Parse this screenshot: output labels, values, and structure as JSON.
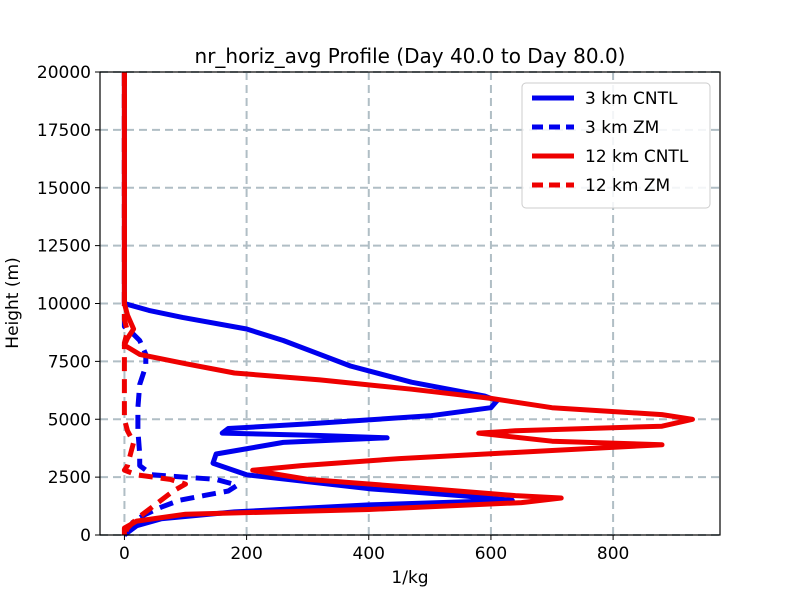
{
  "chart_data": {
    "type": "line",
    "title": "nr_horiz_avg Profile (Day 40.0 to Day 80.0)",
    "xlabel": "1/kg",
    "ylabel": "Height (m)",
    "xlim": [
      -40,
      975
    ],
    "ylim": [
      0,
      20000
    ],
    "xticks": [
      0,
      200,
      400,
      600,
      800
    ],
    "yticks": [
      0,
      2500,
      5000,
      7500,
      10000,
      12500,
      15000,
      17500,
      20000
    ],
    "grid": true,
    "legend_position": "top-right",
    "series": [
      {
        "name": "3 km CNTL",
        "color": "#0000ee",
        "dash": "solid",
        "points": [
          [
            0,
            20000
          ],
          [
            0,
            10000
          ],
          [
            40,
            9700
          ],
          [
            95,
            9400
          ],
          [
            200,
            8900
          ],
          [
            260,
            8400
          ],
          [
            310,
            7900
          ],
          [
            370,
            7300
          ],
          [
            470,
            6600
          ],
          [
            590,
            6000
          ],
          [
            610,
            5800
          ],
          [
            600,
            5500
          ],
          [
            500,
            5150
          ],
          [
            300,
            4800
          ],
          [
            170,
            4600
          ],
          [
            160,
            4400
          ],
          [
            320,
            4300
          ],
          [
            430,
            4200
          ],
          [
            260,
            4000
          ],
          [
            150,
            3500
          ],
          [
            145,
            3100
          ],
          [
            200,
            2600
          ],
          [
            400,
            2000
          ],
          [
            550,
            1700
          ],
          [
            635,
            1500
          ],
          [
            400,
            1300
          ],
          [
            180,
            1000
          ],
          [
            60,
            700
          ],
          [
            20,
            400
          ],
          [
            0,
            0
          ]
        ]
      },
      {
        "name": "3 km ZM",
        "color": "#0000ee",
        "dash": "dashed",
        "points": [
          [
            0,
            20000
          ],
          [
            0,
            9000
          ],
          [
            10,
            8800
          ],
          [
            25,
            8400
          ],
          [
            35,
            7800
          ],
          [
            35,
            7300
          ],
          [
            25,
            6500
          ],
          [
            22,
            5500
          ],
          [
            22,
            4500
          ],
          [
            25,
            3500
          ],
          [
            25,
            3000
          ],
          [
            45,
            2600
          ],
          [
            150,
            2400
          ],
          [
            185,
            2150
          ],
          [
            170,
            1900
          ],
          [
            130,
            1700
          ],
          [
            90,
            1500
          ],
          [
            60,
            1200
          ],
          [
            35,
            900
          ],
          [
            15,
            600
          ],
          [
            0,
            0
          ]
        ]
      },
      {
        "name": "12 km CNTL",
        "color": "#ee0000",
        "dash": "solid",
        "points": [
          [
            0,
            20000
          ],
          [
            0,
            10000
          ],
          [
            5,
            9500
          ],
          [
            15,
            8900
          ],
          [
            5,
            8500
          ],
          [
            0,
            8200
          ],
          [
            25,
            7800
          ],
          [
            100,
            7400
          ],
          [
            180,
            7000
          ],
          [
            320,
            6700
          ],
          [
            470,
            6300
          ],
          [
            600,
            5900
          ],
          [
            700,
            5500
          ],
          [
            880,
            5200
          ],
          [
            930,
            5000
          ],
          [
            880,
            4700
          ],
          [
            640,
            4500
          ],
          [
            580,
            4400
          ],
          [
            700,
            4050
          ],
          [
            880,
            3900
          ],
          [
            700,
            3650
          ],
          [
            450,
            3300
          ],
          [
            290,
            3000
          ],
          [
            210,
            2800
          ],
          [
            300,
            2400
          ],
          [
            500,
            2000
          ],
          [
            640,
            1700
          ],
          [
            715,
            1600
          ],
          [
            650,
            1400
          ],
          [
            400,
            1100
          ],
          [
            100,
            900
          ],
          [
            20,
            600
          ],
          [
            0,
            300
          ],
          [
            0,
            0
          ]
        ]
      },
      {
        "name": "12 km ZM",
        "color": "#ee0000",
        "dash": "dashed",
        "points": [
          [
            0,
            20000
          ],
          [
            0,
            9300
          ],
          [
            5,
            8800
          ],
          [
            0,
            8300
          ],
          [
            0,
            7500
          ],
          [
            0,
            6000
          ],
          [
            0,
            5000
          ],
          [
            5,
            4500
          ],
          [
            15,
            4000
          ],
          [
            10,
            3500
          ],
          [
            5,
            3000
          ],
          [
            0,
            2800
          ],
          [
            20,
            2600
          ],
          [
            75,
            2400
          ],
          [
            100,
            2200
          ],
          [
            80,
            1900
          ],
          [
            60,
            1500
          ],
          [
            40,
            1100
          ],
          [
            20,
            700
          ],
          [
            5,
            300
          ],
          [
            0,
            0
          ]
        ]
      }
    ]
  }
}
